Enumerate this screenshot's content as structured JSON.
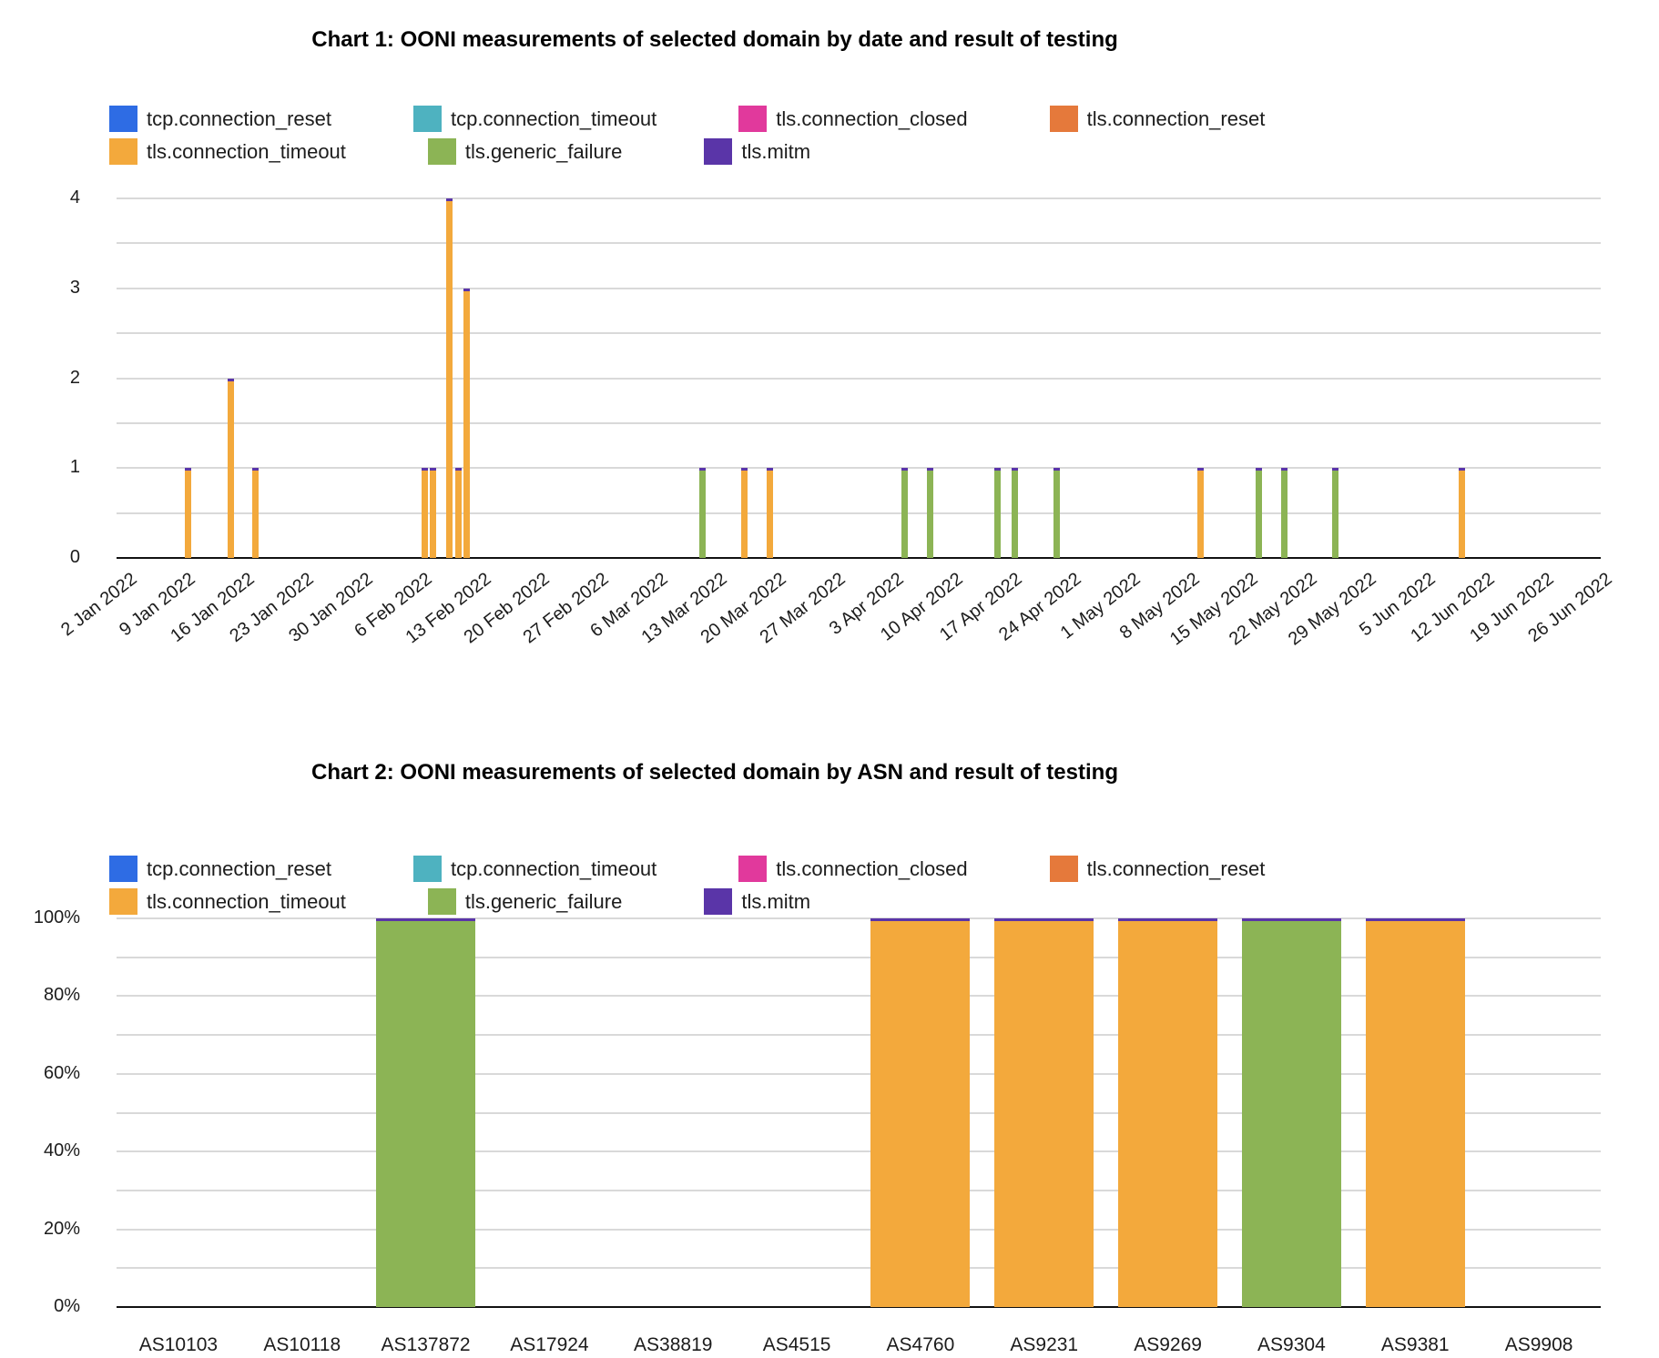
{
  "palette": {
    "tcp.connection_reset": "#2e6ce4",
    "tcp.connection_timeout": "#4eb2c0",
    "tls.connection_closed": "#e1399c",
    "tls.connection_reset": "#e5793b",
    "tls.connection_timeout": "#f3a93c",
    "tls.generic_failure": "#8cb455",
    "tls.mitm": "#5a35a8"
  },
  "legend_items": [
    "tcp.connection_reset",
    "tcp.connection_timeout",
    "tls.connection_closed",
    "tls.connection_reset",
    "tls.connection_timeout",
    "tls.generic_failure",
    "tls.mitm"
  ],
  "chart1": {
    "title": "Chart 1: OONI measurements of selected domain by date and result of testing"
  },
  "chart2": {
    "title": "Chart 2: OONI measurements of selected domain by ASN and result of testing"
  },
  "chart_data": [
    {
      "type": "bar",
      "stacked": true,
      "title": "Chart 1: OONI measurements of selected domain by date and result of testing",
      "xlabel": "",
      "ylabel": "",
      "ylim": [
        0,
        4
      ],
      "y_tick_labels": [
        "0",
        "1",
        "2",
        "3",
        "4"
      ],
      "x_axis": "date",
      "x_days_total": 176,
      "x_tick_step_days": 7,
      "x_tick_labels": [
        "2 Jan 2022",
        "9 Jan 2022",
        "16 Jan 2022",
        "23 Jan 2022",
        "30 Jan 2022",
        "6 Feb 2022",
        "13 Feb 2022",
        "20 Feb 2022",
        "27 Feb 2022",
        "6 Mar 2022",
        "13 Mar 2022",
        "20 Mar 2022",
        "27 Mar 2022",
        "3 Apr 2022",
        "10 Apr 2022",
        "17 Apr 2022",
        "24 Apr 2022",
        "1 May 2022",
        "8 May 2022",
        "15 May 2022",
        "22 May 2022",
        "29 May 2022",
        "5 Jun 2022",
        "12 Jun 2022",
        "19 Jun 2022",
        "26 Jun 2022"
      ],
      "legend_position": "top",
      "grid": "horizontal-only",
      "series_names": [
        "tcp.connection_reset",
        "tcp.connection_timeout",
        "tls.connection_closed",
        "tls.connection_reset",
        "tls.connection_timeout",
        "tls.generic_failure",
        "tls.mitm"
      ],
      "bars": [
        {
          "date": "10 Jan 2022",
          "day_index": 8,
          "series": "tls.connection_timeout",
          "value": 1
        },
        {
          "date": "15 Jan 2022",
          "day_index": 13,
          "series": "tls.connection_timeout",
          "value": 2
        },
        {
          "date": "18 Jan 2022",
          "day_index": 16,
          "series": "tls.connection_timeout",
          "value": 1
        },
        {
          "date": "7 Feb 2022",
          "day_index": 36,
          "series": "tls.connection_timeout",
          "value": 1
        },
        {
          "date": "8 Feb 2022",
          "day_index": 37,
          "series": "tls.connection_timeout",
          "value": 1
        },
        {
          "date": "10 Feb 2022",
          "day_index": 39,
          "series": "tls.connection_timeout",
          "value": 4
        },
        {
          "date": "11 Feb 2022",
          "day_index": 40,
          "series": "tls.connection_timeout",
          "value": 1
        },
        {
          "date": "12 Feb 2022",
          "day_index": 41,
          "series": "tls.connection_timeout",
          "value": 3
        },
        {
          "date": "12 Mar 2022",
          "day_index": 69,
          "series": "tls.generic_failure",
          "value": 1
        },
        {
          "date": "17 Mar 2022",
          "day_index": 74,
          "series": "tls.connection_timeout",
          "value": 1
        },
        {
          "date": "20 Mar 2022",
          "day_index": 77,
          "series": "tls.connection_timeout",
          "value": 1
        },
        {
          "date": "5 Apr 2022",
          "day_index": 93,
          "series": "tls.generic_failure",
          "value": 1
        },
        {
          "date": "8 Apr 2022",
          "day_index": 96,
          "series": "tls.generic_failure",
          "value": 1
        },
        {
          "date": "16 Apr 2022",
          "day_index": 104,
          "series": "tls.generic_failure",
          "value": 1
        },
        {
          "date": "18 Apr 2022",
          "day_index": 106,
          "series": "tls.generic_failure",
          "value": 1
        },
        {
          "date": "23 Apr 2022",
          "day_index": 111,
          "series": "tls.generic_failure",
          "value": 1
        },
        {
          "date": "10 May 2022",
          "day_index": 128,
          "series": "tls.connection_timeout",
          "value": 1
        },
        {
          "date": "17 May 2022",
          "day_index": 135,
          "series": "tls.generic_failure",
          "value": 1
        },
        {
          "date": "20 May 2022",
          "day_index": 138,
          "series": "tls.generic_failure",
          "value": 1
        },
        {
          "date": "26 May 2022",
          "day_index": 144,
          "series": "tls.generic_failure",
          "value": 1
        },
        {
          "date": "10 Jun 2022",
          "day_index": 159,
          "series": "tls.connection_timeout",
          "value": 1
        }
      ],
      "bar_top_cap_series": "tls.mitm"
    },
    {
      "type": "bar",
      "stacked": true,
      "percent": true,
      "title": "Chart 2: OONI measurements of selected domain by ASN and result of testing",
      "xlabel": "",
      "ylabel": "",
      "ylim": [
        "0%",
        "100%"
      ],
      "y_tick_labels": [
        "0%",
        "20%",
        "40%",
        "60%",
        "80%",
        "100%"
      ],
      "categories": [
        "AS10103",
        "AS10118",
        "AS137872",
        "AS17924",
        "AS38819",
        "AS4515",
        "AS4760",
        "AS9231",
        "AS9269",
        "AS9304",
        "AS9381",
        "AS9908"
      ],
      "legend_position": "top",
      "grid": "horizontal-only",
      "series_names": [
        "tcp.connection_reset",
        "tcp.connection_timeout",
        "tls.connection_closed",
        "tls.connection_reset",
        "tls.connection_timeout",
        "tls.generic_failure",
        "tls.mitm"
      ],
      "bars": [
        {
          "asn": "AS137872",
          "series": "tls.generic_failure",
          "value": "100%"
        },
        {
          "asn": "AS4760",
          "series": "tls.connection_timeout",
          "value": "100%"
        },
        {
          "asn": "AS9231",
          "series": "tls.connection_timeout",
          "value": "100%"
        },
        {
          "asn": "AS9269",
          "series": "tls.connection_timeout",
          "value": "100%"
        },
        {
          "asn": "AS9304",
          "series": "tls.generic_failure",
          "value": "100%"
        },
        {
          "asn": "AS9381",
          "series": "tls.connection_timeout",
          "value": "100%"
        }
      ],
      "bar_top_cap_series": "tls.mitm"
    }
  ]
}
